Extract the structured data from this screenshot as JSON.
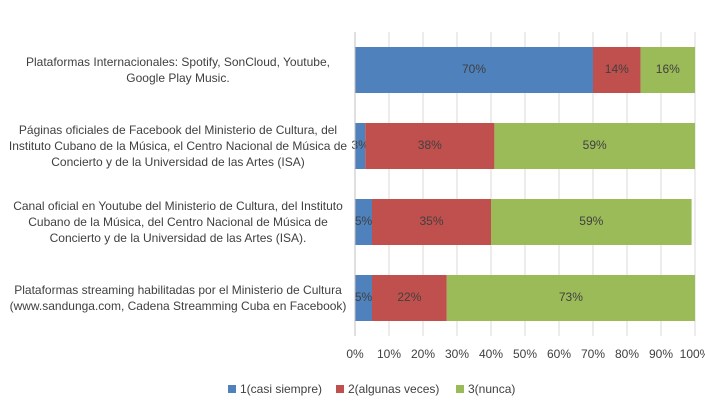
{
  "chart_data": {
    "type": "stacked_barh",
    "categories": [
      "Plataformas Internacionales: Spotify, SonCloud, Youtube, Google Play Music.",
      "Páginas oficiales de Facebook del Ministerio de Cultura, del Instituto Cubano de la Música, el Centro Nacional de Música de Concierto y  de la Universidad de las Artes (ISA)",
      "Canal oficial en Youtube del Ministerio de Cultura, del Instituto Cubano de la Música, del Centro Nacional de Música de Concierto y  de la Universidad de las Artes (ISA).",
      "Plataformas streaming habilitadas por el Ministerio de Cultura (www.sandunga.com, Cadena Streamming Cuba en Facebook)"
    ],
    "series": [
      {
        "name": "1(casi siempre)",
        "color": "#4f81bd",
        "values": [
          70,
          3,
          5,
          5
        ],
        "value_labels": [
          "70%",
          "3%",
          "5%",
          "5%"
        ]
      },
      {
        "name": "2(algunas veces)",
        "color": "#c0504d",
        "values": [
          14,
          38,
          35,
          22
        ],
        "value_labels": [
          "14%",
          "38%",
          "35%",
          "22%"
        ]
      },
      {
        "name": "3(nunca)",
        "color": "#9bbb59",
        "values": [
          16,
          59,
          59,
          73
        ],
        "value_labels": [
          "16%",
          "59%",
          "59%",
          "73%"
        ]
      }
    ],
    "xlim": [
      0,
      100
    ],
    "xticks": [
      {
        "value": 0,
        "label": "0%"
      },
      {
        "value": 10,
        "label": "10%"
      },
      {
        "value": 20,
        "label": "20%"
      },
      {
        "value": 30,
        "label": "30%"
      },
      {
        "value": 40,
        "label": "40%"
      },
      {
        "value": 50,
        "label": "50%"
      },
      {
        "value": 60,
        "label": "60%"
      },
      {
        "value": 70,
        "label": "70%"
      },
      {
        "value": 80,
        "label": "80%"
      },
      {
        "value": 90,
        "label": "90%"
      },
      {
        "value": 100,
        "label": "100%"
      }
    ],
    "grid": true,
    "legend": "bottom"
  }
}
